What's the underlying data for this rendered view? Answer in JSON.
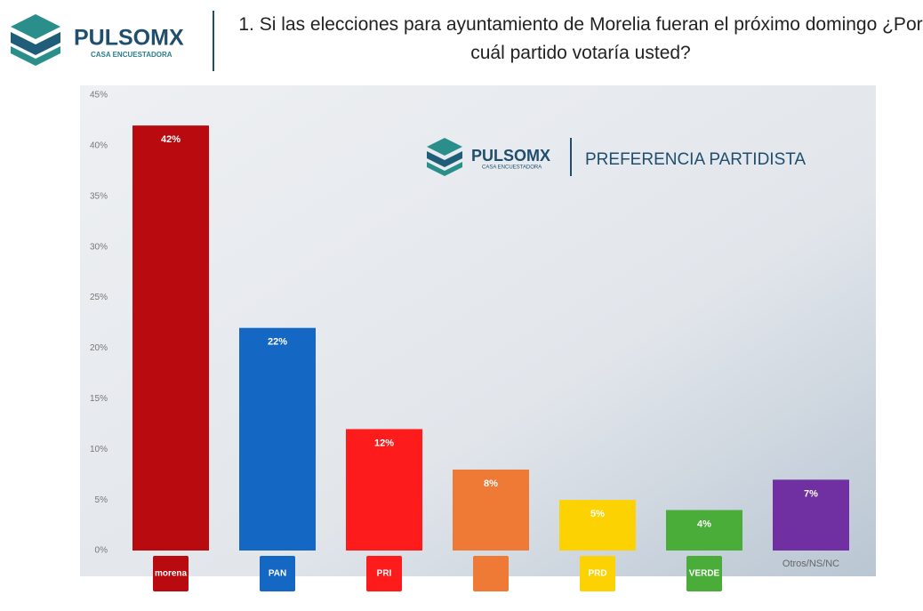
{
  "header": {
    "brand": "PULSOMX",
    "tagline": "CASA ENCUESTADORA"
  },
  "chart_data": {
    "type": "bar",
    "title": "1. Si las elecciones para ayuntamiento de Morelia fueran el próximo domingo ¿Por cuál partido votaría usted?",
    "inner_brand": "PULSOMX",
    "inner_tagline": "CASA ENCUESTADORA",
    "subtitle": "PREFERENCIA PARTIDISTA",
    "categories": [
      "morena",
      "PAN",
      "PRI",
      null,
      "PRD",
      "VERDE",
      "Otros/NS/NC"
    ],
    "values": [
      42,
      22,
      12,
      8,
      5,
      4,
      7
    ],
    "value_labels": [
      "42%",
      "22%",
      "12%",
      "8%",
      "5%",
      "4%",
      "7%"
    ],
    "colors": [
      "#b90b0f",
      "#1467c2",
      "#fe1b1b",
      "#ee7a35",
      "#fcd203",
      "#4aad3a",
      "#7130a2"
    ],
    "ylim": [
      0,
      45
    ],
    "yticks": [
      {
        "value": 0,
        "label": "0%"
      },
      {
        "value": 5,
        "label": "5%"
      },
      {
        "value": 10,
        "label": "10%"
      },
      {
        "value": 15,
        "label": "15%"
      },
      {
        "value": 20,
        "label": "20%"
      },
      {
        "value": 25,
        "label": "25%"
      },
      {
        "value": 30,
        "label": "30%"
      },
      {
        "value": 35,
        "label": "35%"
      },
      {
        "value": 40,
        "label": "40%"
      },
      {
        "value": 45,
        "label": "45%"
      }
    ]
  }
}
